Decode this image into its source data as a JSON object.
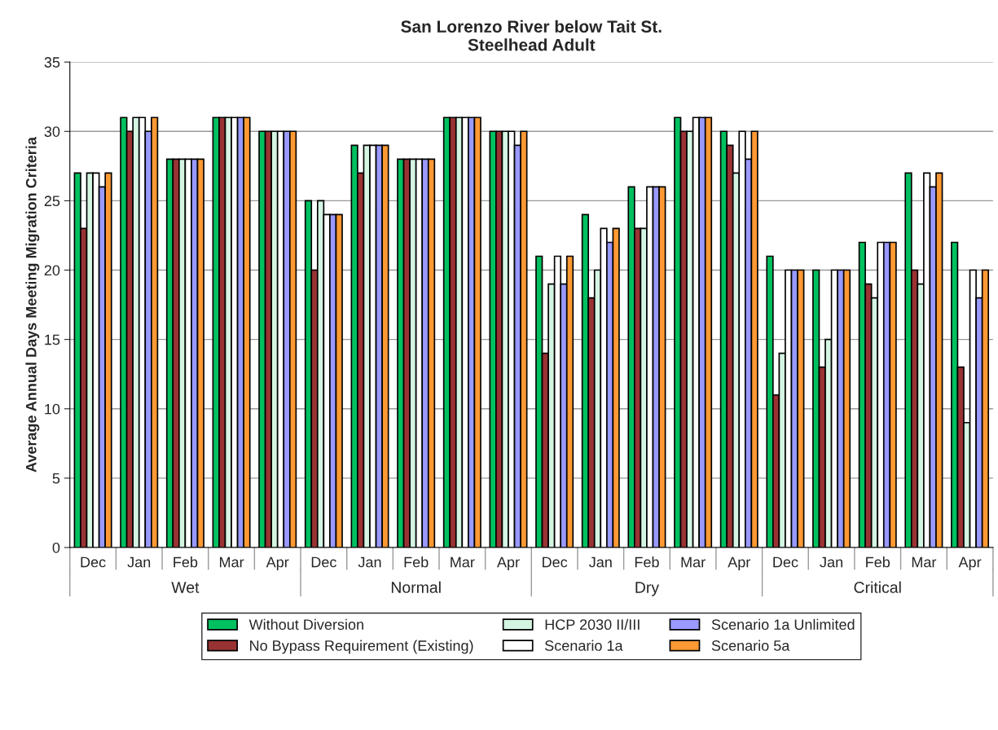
{
  "chart_data": {
    "type": "bar",
    "title": "San Lorenzo River below Tait St.\nSteelhead Adult",
    "ylabel": "Average Annual Days Meeting Migration Criteria",
    "categories": [
      "Dec",
      "Jan",
      "Feb",
      "Mar",
      "Apr",
      "Dec",
      "Jan",
      "Feb",
      "Mar",
      "Apr",
      "Dec",
      "Jan",
      "Feb",
      "Mar",
      "Apr",
      "Dec",
      "Jan",
      "Feb",
      "Mar",
      "Apr"
    ],
    "annotations": [
      "Wet",
      "Normal",
      "Dry",
      "Critical"
    ],
    "series": [
      {
        "name": "Without Diversion",
        "color": "#00c060",
        "values": [
          27,
          31,
          28,
          31,
          30,
          25,
          29,
          28,
          31,
          30,
          21,
          24,
          26,
          31,
          30,
          21,
          20,
          22,
          27,
          22
        ]
      },
      {
        "name": "No Bypass Requirement (Existing)",
        "color": "#993333",
        "values": [
          23,
          30,
          28,
          31,
          30,
          20,
          27,
          28,
          31,
          30,
          14,
          18,
          23,
          30,
          29,
          11,
          13,
          19,
          20,
          13
        ]
      },
      {
        "name": "HCP 2030 II/III",
        "color": "#d4f5e2",
        "values": [
          27,
          31,
          28,
          31,
          30,
          25,
          29,
          28,
          31,
          30,
          19,
          20,
          23,
          30,
          27,
          14,
          15,
          18,
          19,
          9
        ]
      },
      {
        "name": "Scenario 1a",
        "color": "#ffffff",
        "values": [
          27,
          31,
          28,
          31,
          30,
          24,
          29,
          28,
          31,
          30,
          21,
          23,
          26,
          31,
          30,
          20,
          20,
          22,
          27,
          20
        ]
      },
      {
        "name": "Scenario 1a Unlimited",
        "color": "#9999ff",
        "values": [
          26,
          30,
          28,
          31,
          30,
          24,
          29,
          28,
          31,
          29,
          19,
          22,
          26,
          31,
          28,
          20,
          20,
          22,
          26,
          18
        ]
      },
      {
        "name": "Scenario 5a",
        "color": "#ff9933",
        "values": [
          27,
          31,
          28,
          31,
          30,
          24,
          29,
          28,
          31,
          30,
          21,
          23,
          26,
          31,
          30,
          20,
          20,
          22,
          27,
          20
        ]
      }
    ],
    "ylim": [
      0,
      35
    ],
    "yticks": [
      0,
      5,
      10,
      15,
      20,
      25,
      30,
      35
    ],
    "grid": "y",
    "legend": "bottom"
  }
}
